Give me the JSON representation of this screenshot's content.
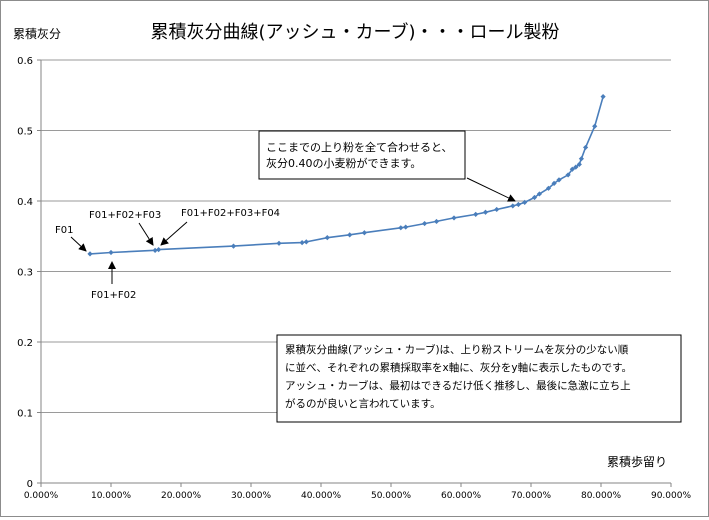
{
  "chart_data": {
    "type": "line",
    "title": "累積灰分曲線(アッシュ・カーブ)・・・ロール製粉",
    "ylabel": "累積灰分",
    "xlabel": "累積歩留り",
    "xlim": [
      0,
      90
    ],
    "ylim": [
      0,
      0.6
    ],
    "x_ticks": [
      "0.000%",
      "10.000%",
      "20.000%",
      "30.000%",
      "40.000%",
      "50.000%",
      "60.000%",
      "70.000%",
      "80.000%",
      "90.000%"
    ],
    "y_ticks": [
      "0",
      "0.1",
      "0.2",
      "0.3",
      "0.4",
      "0.5",
      "0.6"
    ],
    "grid": "horizontal",
    "legend": "none",
    "line_color": "#4a7ebb",
    "series": [
      {
        "x": [
          7.0,
          10.0,
          16.3,
          16.8,
          27.5,
          34.0,
          37.3,
          37.9,
          40.9,
          44.1,
          46.2,
          51.4,
          52.1,
          54.8,
          56.5,
          59.0,
          62.1,
          63.5,
          65.1,
          67.4,
          68.2,
          69.1,
          70.5,
          71.2,
          72.5,
          73.3,
          74.0,
          75.3,
          75.9,
          76.4,
          76.9,
          77.2,
          77.8,
          79.1,
          80.3
        ],
        "y": [
          0.325,
          0.327,
          0.33,
          0.331,
          0.336,
          0.34,
          0.341,
          0.342,
          0.348,
          0.352,
          0.355,
          0.362,
          0.363,
          0.368,
          0.371,
          0.376,
          0.381,
          0.384,
          0.388,
          0.393,
          0.395,
          0.398,
          0.405,
          0.41,
          0.418,
          0.425,
          0.43,
          0.437,
          0.445,
          0.448,
          0.452,
          0.46,
          0.476,
          0.506,
          0.548
        ]
      }
    ],
    "annotations": [
      {
        "label": "F01"
      },
      {
        "label": "F01+F02"
      },
      {
        "label": "F01+F02+F03"
      },
      {
        "label": "F01+F02+F03+F04"
      }
    ],
    "callout": {
      "lines": [
        "ここまでの上り粉を全て合わせると、",
        "灰分0.40の小麦粉ができます。"
      ]
    },
    "note": {
      "lines": [
        "累積灰分曲線(アッシュ・カーブ)は、上り粉ストリームを灰分の少ない順",
        "に並べ、それぞれの累積採取率をx軸に、灰分をy軸に表示したものです。",
        "アッシュ・カーブは、最初はできるだけ低く推移し、最後に急激に立ち上",
        "がるのが良いと言われています。"
      ]
    }
  }
}
